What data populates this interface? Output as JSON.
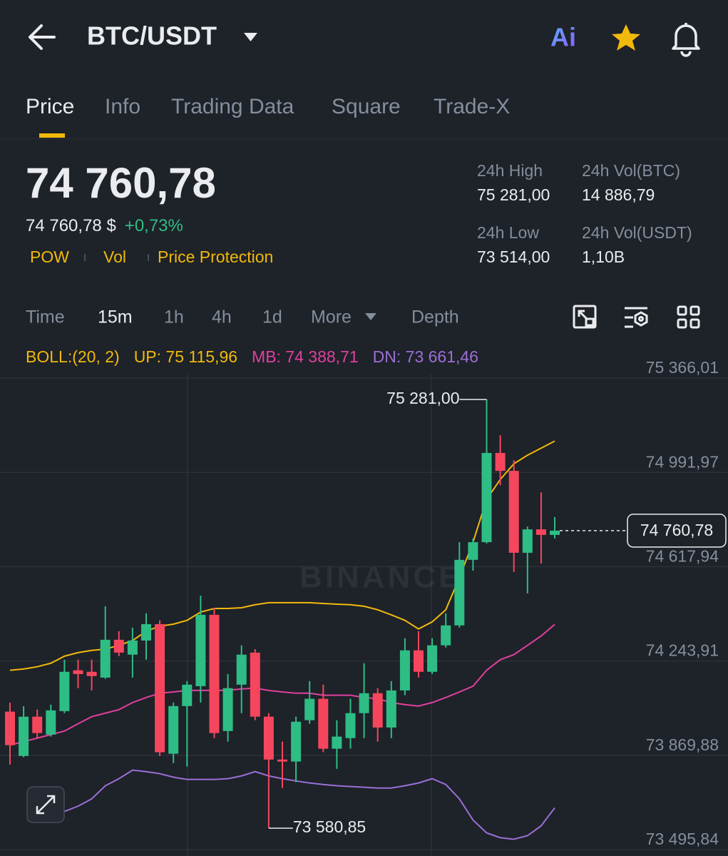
{
  "header": {
    "pair": "BTC/USDT",
    "ai": "Ai"
  },
  "tabs": [
    "Price",
    "Info",
    "Trading Data",
    "Square",
    "Trade-X"
  ],
  "price": {
    "last": "74 760,78",
    "usd": "74 760,78 $",
    "change": "+0,73%"
  },
  "tags": [
    "POW",
    "Vol",
    "Price Protection"
  ],
  "stats": [
    {
      "label": "24h High",
      "value": "75 281,00"
    },
    {
      "label": "24h Vol(BTC)",
      "value": "14 886,79"
    },
    {
      "label": "24h Low",
      "value": "73 514,00"
    },
    {
      "label": "24h Vol(USDT)",
      "value": "1,10B"
    }
  ],
  "intervals": [
    "Time",
    "15m",
    "1h",
    "4h",
    "1d",
    "More",
    "Depth"
  ],
  "chart_data": {
    "type": "candlestick",
    "watermark": "BINANCE",
    "indicator": "BOLL:(20, 2)",
    "up_color": "#2ebd85",
    "down_color": "#f6465d",
    "ylim": [
      73495.84,
      75366.01
    ],
    "yticks": [
      {
        "value": 75366.01,
        "label": "75 366,01"
      },
      {
        "value": 74991.97,
        "label": "74 991,97"
      },
      {
        "value": 74617.94,
        "label": "74 617,94"
      },
      {
        "value": 74243.91,
        "label": "74 243,91"
      },
      {
        "value": 73869.88,
        "label": "73 869,88"
      },
      {
        "value": 73495.84,
        "label": "73 495,84"
      }
    ],
    "open": [
      74043,
      73867,
      74023,
      73952,
      74045,
      74207,
      74201,
      74178,
      74328,
      74269,
      74325,
      74390,
      73876,
      74065,
      74144,
      74427,
      73966,
      74150,
      74277,
      74023,
      73853,
      73845,
      74009,
      74094,
      73896,
      73938,
      74037,
      74116,
      73980,
      74127,
      74286,
      74201,
      74306,
      74385,
      74645,
      74715,
      75069,
      74998,
      74673,
      74766,
      74744
    ],
    "high": [
      74079,
      74065,
      74051,
      74071,
      74249,
      74249,
      74249,
      74461,
      74362,
      74376,
      74433,
      74405,
      74079,
      74164,
      74503,
      74455,
      74192,
      74306,
      74291,
      74037,
      73924,
      74023,
      74164,
      74150,
      74009,
      74094,
      74235,
      74136,
      74164,
      74334,
      74362,
      74334,
      74433,
      74715,
      74730,
      75281,
      75139,
      75040,
      74777,
      74913,
      74815
    ],
    "low": [
      73833,
      73862,
      73938,
      73944,
      74037,
      74136,
      74127,
      74173,
      74263,
      74178,
      74249,
      73867,
      73839,
      73825,
      74079,
      73938,
      73924,
      74037,
      74009,
      73580.85,
      73740,
      73763,
      73995,
      73882,
      73816,
      73896,
      73938,
      73924,
      73938,
      74108,
      74178,
      74192,
      74297,
      74376,
      74602,
      74710,
      74941,
      74597,
      74512,
      74630,
      74730
    ],
    "close": [
      73910,
      74023,
      73958,
      74048,
      74201,
      74192,
      74184,
      74328,
      74277,
      74325,
      74390,
      73882,
      74065,
      74150,
      74427,
      73958,
      74136,
      74269,
      74023,
      73853,
      73845,
      74003,
      74094,
      73896,
      73944,
      74037,
      74116,
      73980,
      74127,
      74286,
      74201,
      74306,
      74385,
      74645,
      74715,
      75069,
      74998,
      74673,
      74766,
      74744,
      74760.78
    ],
    "bollinger": [
      {
        "legend": "UP: 75 115,96",
        "color": "#f0b90b",
        "values": [
          74207,
          74212,
          74221,
          74235,
          74263,
          74277,
          74286,
          74291,
          74306,
          74325,
          74362,
          74382,
          74390,
          74405,
          74438,
          74452,
          74452,
          74455,
          74467,
          74475,
          74475,
          74475,
          74475,
          74472,
          74469,
          74467,
          74461,
          74447,
          74427,
          74405,
          74371,
          74399,
          74447,
          74574,
          74715,
          74885,
          74964,
          75026,
          75060,
          75088,
          75115.96
        ]
      },
      {
        "legend": "MB: 74 388,71",
        "color": "#e0409e",
        "values": [
          73910,
          73924,
          73938,
          73952,
          73966,
          73995,
          74023,
          74037,
          74051,
          74079,
          74099,
          74116,
          74121,
          74127,
          74127,
          74127,
          74127,
          74133,
          74136,
          74127,
          74121,
          74116,
          74116,
          74108,
          74108,
          74108,
          74099,
          74094,
          74079,
          74071,
          74065,
          74079,
          74099,
          74121,
          74144,
          74207,
          74249,
          74269,
          74306,
          74343,
          74388.71
        ]
      },
      {
        "legend": "DN: 73 661,46",
        "color": "#9b6fd6",
        "values": [
          null,
          null,
          null,
          null,
          73647,
          73668,
          73697,
          73749,
          73777,
          73811,
          73805,
          73797,
          73783,
          73774,
          73774,
          73774,
          73777,
          73788,
          73805,
          73788,
          73777,
          73768,
          73760,
          73754,
          73749,
          73746,
          73743,
          73740,
          73740,
          73749,
          73760,
          73777,
          73754,
          73697,
          73613,
          73562,
          73543,
          73537,
          73551,
          73590,
          73661.46
        ]
      }
    ],
    "annotations": [
      {
        "value": 75281,
        "label": "75 281,00"
      },
      {
        "value": 73580.85,
        "label": "73 580,85"
      }
    ],
    "last_price": {
      "value": 74760.78,
      "label": "74 760,78"
    }
  }
}
